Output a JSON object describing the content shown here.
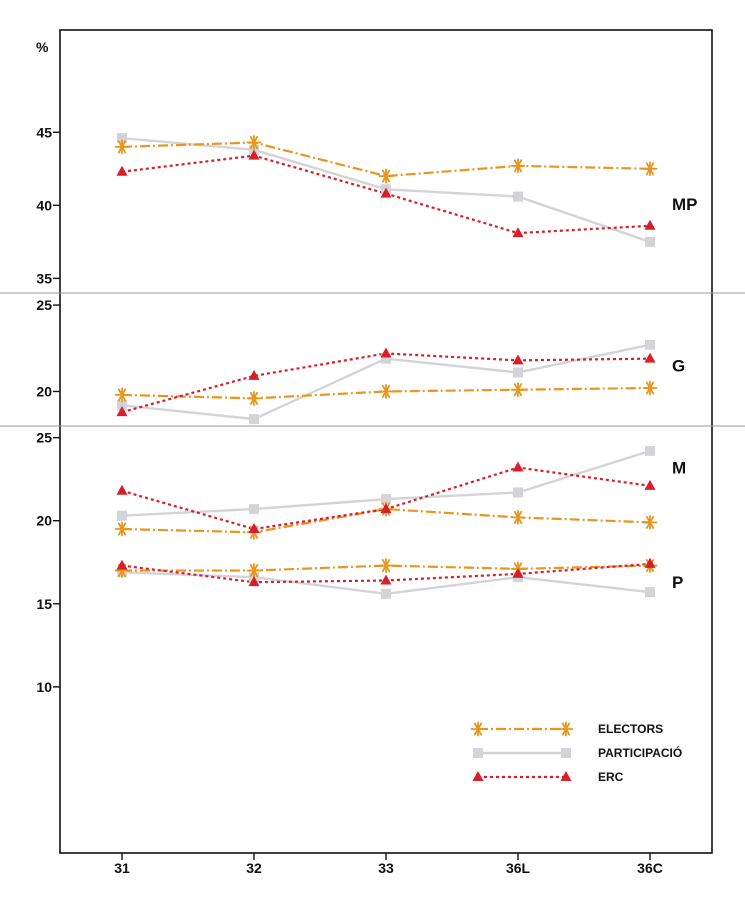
{
  "chart_data": {
    "type": "line",
    "categories": [
      "31",
      "32",
      "33",
      "36L",
      "36C"
    ],
    "y_unit_label": "%",
    "series_styles": [
      {
        "name": "ELECTORS",
        "color": "#e8961e",
        "marker": "asterisk",
        "line": "dash-dot"
      },
      {
        "name": "PARTICIPACIÓ",
        "color": "#d4d4d8",
        "marker": "square",
        "line": "solid"
      },
      {
        "name": "ERC",
        "color": "#d81e2a",
        "marker": "triangle",
        "line": "dotted"
      }
    ],
    "panels": [
      {
        "ylim": [
          34,
          52
        ],
        "yticks": [
          35,
          40,
          45
        ],
        "groups": [
          {
            "label": "MP",
            "values": {
              "ELECTORS": [
                44.0,
                44.3,
                42.0,
                42.7,
                42.5
              ],
              "PARTICIPACIÓ": [
                44.6,
                43.8,
                41.1,
                40.6,
                37.5
              ],
              "ERC": [
                42.3,
                43.4,
                40.8,
                38.1,
                38.6
              ]
            }
          }
        ]
      },
      {
        "ylim": [
          18.0,
          25.7
        ],
        "yticks": [
          20,
          25
        ],
        "groups": [
          {
            "label": "G",
            "values": {
              "ELECTORS": [
                19.8,
                19.6,
                20.0,
                20.1,
                20.2
              ],
              "PARTICIPACIÓ": [
                19.2,
                18.4,
                21.9,
                21.1,
                22.7
              ],
              "ERC": [
                18.8,
                20.9,
                22.2,
                21.8,
                21.9
              ]
            }
          }
        ]
      },
      {
        "ylim": [
          0,
          25.7
        ],
        "yticks": [
          10,
          15,
          20,
          25
        ],
        "groups": [
          {
            "label": "M",
            "values": {
              "ELECTORS": [
                19.5,
                19.3,
                20.7,
                20.2,
                19.9
              ],
              "PARTICIPACIÓ": [
                20.3,
                20.7,
                21.3,
                21.7,
                24.2
              ],
              "ERC": [
                21.8,
                19.5,
                20.7,
                23.2,
                22.1
              ]
            }
          },
          {
            "label": "P",
            "values": {
              "ELECTORS": [
                17.0,
                17.0,
                17.3,
                17.1,
                17.3
              ],
              "PARTICIPACIÓ": [
                16.9,
                16.6,
                15.6,
                16.6,
                15.7
              ],
              "ERC": [
                17.3,
                16.3,
                16.4,
                16.8,
                17.4
              ]
            }
          }
        ]
      }
    ],
    "legend": {
      "position": "bottom-right",
      "entries": [
        "ELECTORS",
        "PARTICIPACIÓ",
        "ERC"
      ]
    }
  }
}
